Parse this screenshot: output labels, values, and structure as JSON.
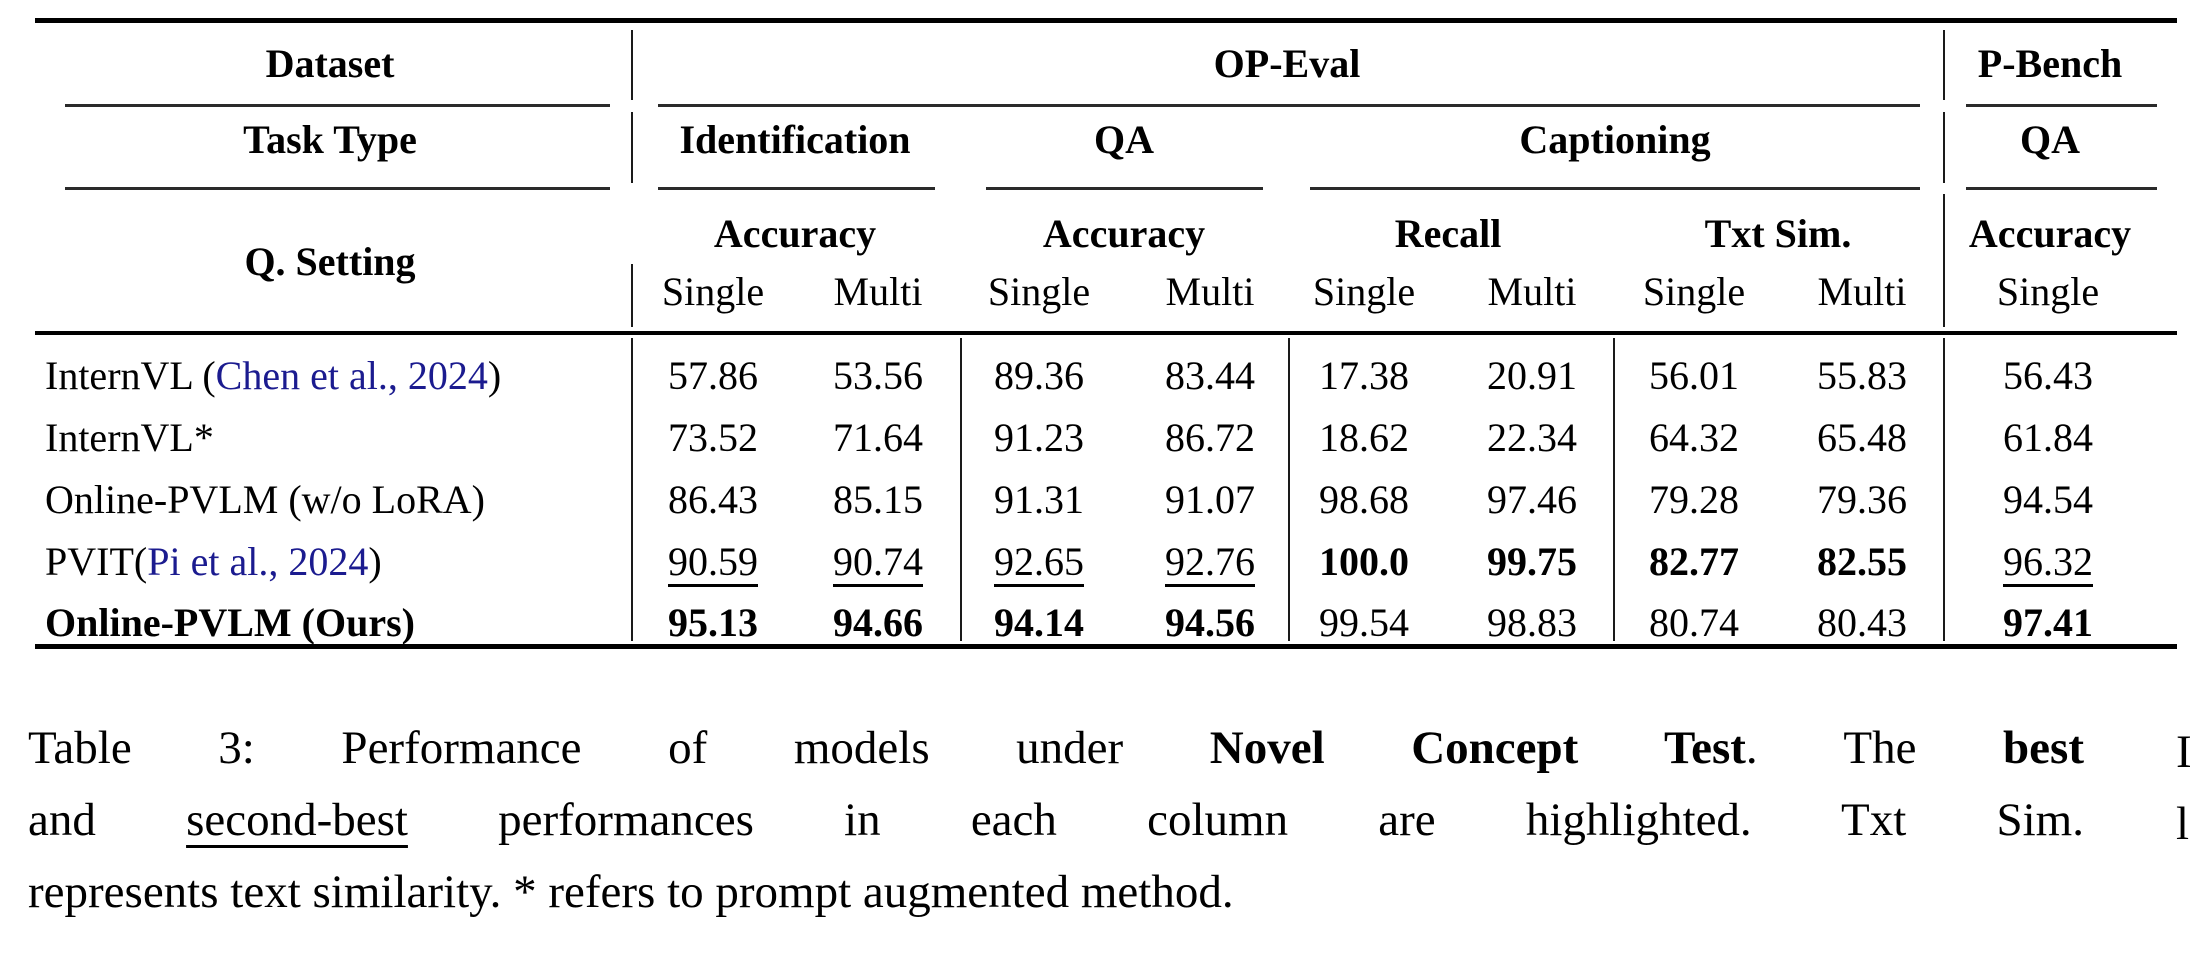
{
  "colors": {
    "citation_blue": "#1b1b8f",
    "text": "#000000",
    "background": "#ffffff"
  },
  "table": {
    "col_headers": {
      "dataset_label": "Dataset",
      "task_type_label": "Task Type",
      "q_setting_label": "Q. Setting",
      "op_eval_label": "OP-Eval",
      "p_bench_label": "P-Bench",
      "task_identification": "Identification",
      "task_qa": "QA",
      "task_captioning": "Captioning",
      "task_p_bench_qa": "QA",
      "metric_identification": "Accuracy",
      "metric_qa": "Accuracy",
      "metric_recall": "Recall",
      "metric_txt_sim": "Txt Sim.",
      "metric_p_bench": "Accuracy",
      "settings": [
        "Single",
        "Multi",
        "Single",
        "Multi",
        "Single",
        "Multi",
        "Single",
        "Multi",
        "Single"
      ]
    },
    "rows": [
      {
        "model": {
          "pre": "InternVL (",
          "cite": "Chen et al., 2024",
          "post": ")",
          "s": ""
        },
        "cells": [
          {
            "v": "57.86",
            "s": ""
          },
          {
            "v": "53.56",
            "s": ""
          },
          {
            "v": "89.36",
            "s": ""
          },
          {
            "v": "83.44",
            "s": ""
          },
          {
            "v": "17.38",
            "s": ""
          },
          {
            "v": "20.91",
            "s": ""
          },
          {
            "v": "56.01",
            "s": ""
          },
          {
            "v": "55.83",
            "s": ""
          },
          {
            "v": "56.43",
            "s": ""
          }
        ]
      },
      {
        "model": {
          "pre": "InternVL*",
          "cite": "",
          "post": "",
          "s": ""
        },
        "cells": [
          {
            "v": "73.52",
            "s": ""
          },
          {
            "v": "71.64",
            "s": ""
          },
          {
            "v": "91.23",
            "s": ""
          },
          {
            "v": "86.72",
            "s": ""
          },
          {
            "v": "18.62",
            "s": ""
          },
          {
            "v": "22.34",
            "s": ""
          },
          {
            "v": "64.32",
            "s": ""
          },
          {
            "v": "65.48",
            "s": ""
          },
          {
            "v": "61.84",
            "s": ""
          }
        ]
      },
      {
        "model": {
          "pre": "Online-PVLM (w/o LoRA)",
          "cite": "",
          "post": "",
          "s": ""
        },
        "cells": [
          {
            "v": "86.43",
            "s": ""
          },
          {
            "v": "85.15",
            "s": ""
          },
          {
            "v": "91.31",
            "s": ""
          },
          {
            "v": "91.07",
            "s": ""
          },
          {
            "v": "98.68",
            "s": ""
          },
          {
            "v": "97.46",
            "s": ""
          },
          {
            "v": "79.28",
            "s": ""
          },
          {
            "v": "79.36",
            "s": ""
          },
          {
            "v": "94.54",
            "s": ""
          }
        ]
      },
      {
        "model": {
          "pre": "PVIT(",
          "cite": "Pi et al., 2024",
          "post": ")",
          "s": ""
        },
        "cells": [
          {
            "v": "90.59",
            "s": "u"
          },
          {
            "v": "90.74",
            "s": "u"
          },
          {
            "v": "92.65",
            "s": "u"
          },
          {
            "v": "92.76",
            "s": "u"
          },
          {
            "v": "100.0",
            "s": "b"
          },
          {
            "v": "99.75",
            "s": "b"
          },
          {
            "v": "82.77",
            "s": "b"
          },
          {
            "v": "82.55",
            "s": "b"
          },
          {
            "v": "96.32",
            "s": "u"
          }
        ]
      },
      {
        "model": {
          "pre": "Online-PVLM (Ours)",
          "cite": "",
          "post": "",
          "s": "b"
        },
        "cells": [
          {
            "v": "95.13",
            "s": "b"
          },
          {
            "v": "94.66",
            "s": "b"
          },
          {
            "v": "94.14",
            "s": "b"
          },
          {
            "v": "94.56",
            "s": "b"
          },
          {
            "v": "99.54",
            "s": "u"
          },
          {
            "v": "98.83",
            "s": "u"
          },
          {
            "v": "80.74",
            "s": "u"
          },
          {
            "v": "80.43",
            "s": "u"
          },
          {
            "v": "97.41",
            "s": "b"
          }
        ]
      }
    ]
  },
  "caption": {
    "l1_a": "Table 3: Performance of models under ",
    "l1_b": "Novel Concept Test",
    "l1_c": ". The ",
    "l1_d": "best",
    "l2_a": "and ",
    "l2_b": "second-best",
    "l2_c": " performances in each column are highlighted. Txt Sim.",
    "l3": "represents text similarity. * refers to prompt augmented method."
  },
  "edge_fragments": {
    "line1": "I",
    "line2": "l"
  }
}
